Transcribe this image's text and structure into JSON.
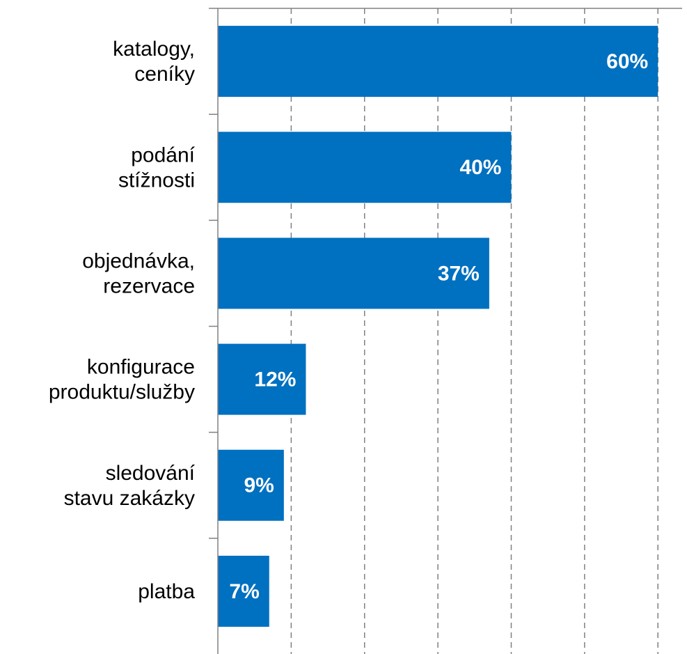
{
  "chart_data": {
    "type": "barh",
    "categories": [
      "katalogy,\nceníky",
      "podání\nstížnosti",
      "objednávka,\nrezervace",
      "konfigurace\nproduktu/služby",
      "sledování\nstavu zakázky",
      "platba"
    ],
    "values": [
      60,
      40,
      37,
      12,
      9,
      7
    ],
    "value_labels": [
      "60%",
      "40%",
      "37%",
      "12%",
      "9%",
      "7%"
    ],
    "color": "#0070c0",
    "xlim": [
      0,
      63.3
    ],
    "xticks": [
      0,
      10,
      20,
      30,
      40,
      50,
      60
    ],
    "grid": true
  }
}
